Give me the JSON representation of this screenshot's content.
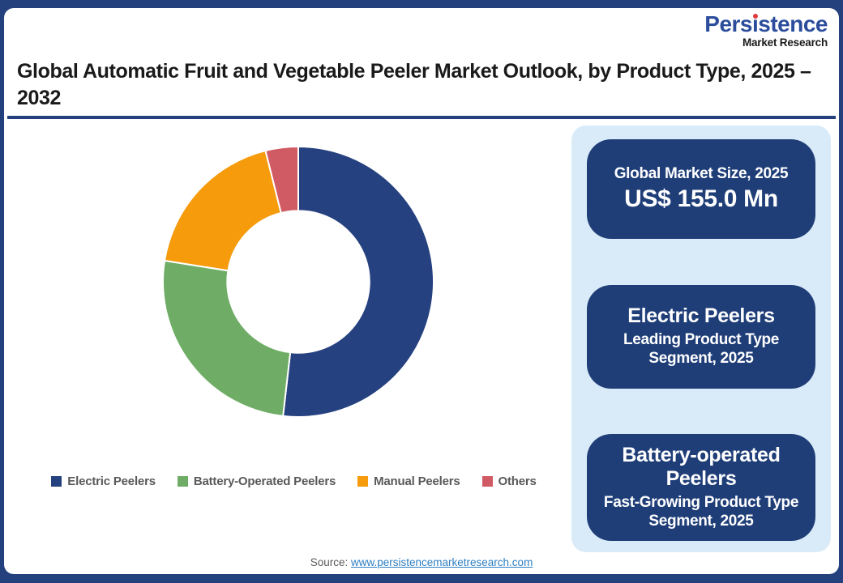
{
  "brand": {
    "logo_primary": "Persistence",
    "logo_secondary": "Market Research",
    "logo_color": "#2B4D9C",
    "logo_dot_color": "#E03A3E"
  },
  "header": {
    "title": "Global Automatic Fruit and Vegetable Peeler Market Outlook, by Product Type, 2025 – 2032"
  },
  "chart_data": {
    "type": "pie",
    "subtype": "donut",
    "title": "Global Automatic Fruit and Vegetable Peeler Market Outlook, by Product Type, 2025 – 2032",
    "categories": [
      "Electric Peelers",
      "Battery-Operated Peelers",
      "Manual Peelers",
      "Others"
    ],
    "values": [
      51.8,
      25.7,
      18.6,
      3.9
    ],
    "value_unit": "estimated % share of ring, read from pixels (no data labels shown)",
    "colors": [
      "#26417F",
      "#6FAD66",
      "#F59B0C",
      "#D15B65"
    ],
    "start_angle_deg": 0,
    "direction": "clockwise",
    "inner_radius_ratio": 0.525,
    "slice_gap_color": "#FFFFFF",
    "legend_position": "bottom"
  },
  "sidebar": {
    "panel_color": "#D9EBF8",
    "card_color": "#1F3E78",
    "cards": [
      {
        "line1": "Global Market Size, 2025",
        "line2": "US$ 155.0 Mn"
      },
      {
        "line1": "Electric Peelers",
        "line2": "Leading Product Type Segment, 2025"
      },
      {
        "line1": "Battery-operated Peelers",
        "line2": "Fast-Growing Product Type Segment, 2025"
      }
    ]
  },
  "footer": {
    "source_label": "Source:",
    "source_link_text": "www.persistencemarketresearch.com"
  },
  "theme": {
    "border_navy": "#24417E",
    "text_dark": "#1A1A1A",
    "text_gray": "#595959",
    "link_blue": "#2E7EC2",
    "background": "#FFFFFF"
  }
}
